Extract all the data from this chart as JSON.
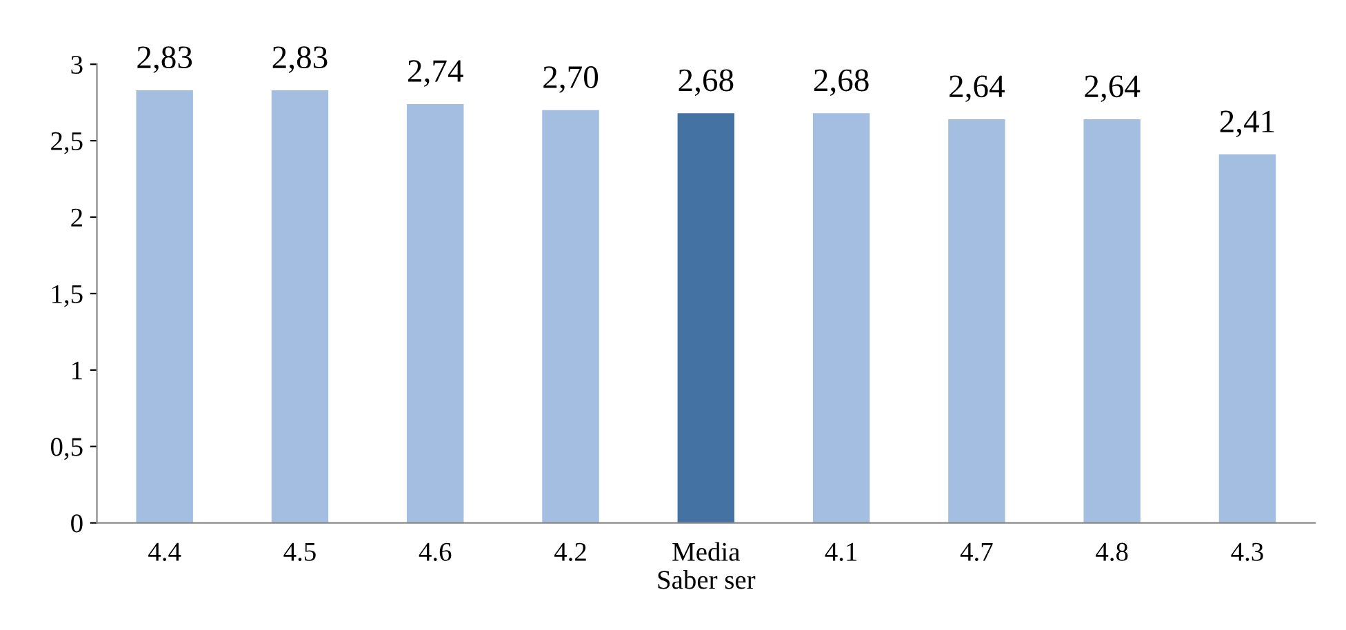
{
  "chart_data": {
    "type": "bar",
    "categories": [
      "4.4",
      "4.5",
      "4.6",
      "4.2",
      "Media\nSaber ser",
      "4.1",
      "4.7",
      "4.8",
      "4.3"
    ],
    "values": [
      2.83,
      2.83,
      2.74,
      2.7,
      2.68,
      2.68,
      2.64,
      2.64,
      2.41
    ],
    "colors": [
      "#a3bee0",
      "#a3bee0",
      "#a3bee0",
      "#a3bee0",
      "#4472a2",
      "#a3bee0",
      "#a3bee0",
      "#a3bee0",
      "#a3bee0"
    ],
    "value_labels": [
      "2,83",
      "2,83",
      "2,74",
      "2,70",
      "2,68",
      "2,68",
      "2,64",
      "2,64",
      "2,41"
    ],
    "ylim": [
      0,
      3
    ],
    "yticks": [
      0,
      {
        "value": 0.5,
        "label": "0,5"
      },
      1,
      {
        "value": 1.5,
        "label": "1,5"
      },
      2,
      {
        "value": 2.5,
        "label": "2,5"
      },
      3
    ],
    "grid": false,
    "legend": false
  }
}
